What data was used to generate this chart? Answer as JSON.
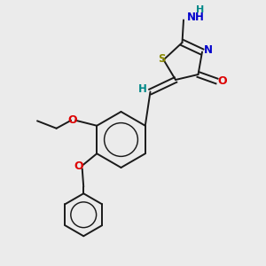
{
  "bg_color": "#ebebeb",
  "bond_color": "#1a1a1a",
  "S_color": "#888800",
  "N_color": "#0000cc",
  "O_color": "#dd0000",
  "H_color": "#008888",
  "NH_color": "#0000cc",
  "figsize": [
    3.0,
    3.0
  ],
  "dpi": 100,
  "xlim": [
    0,
    10
  ],
  "ylim": [
    0,
    10
  ]
}
